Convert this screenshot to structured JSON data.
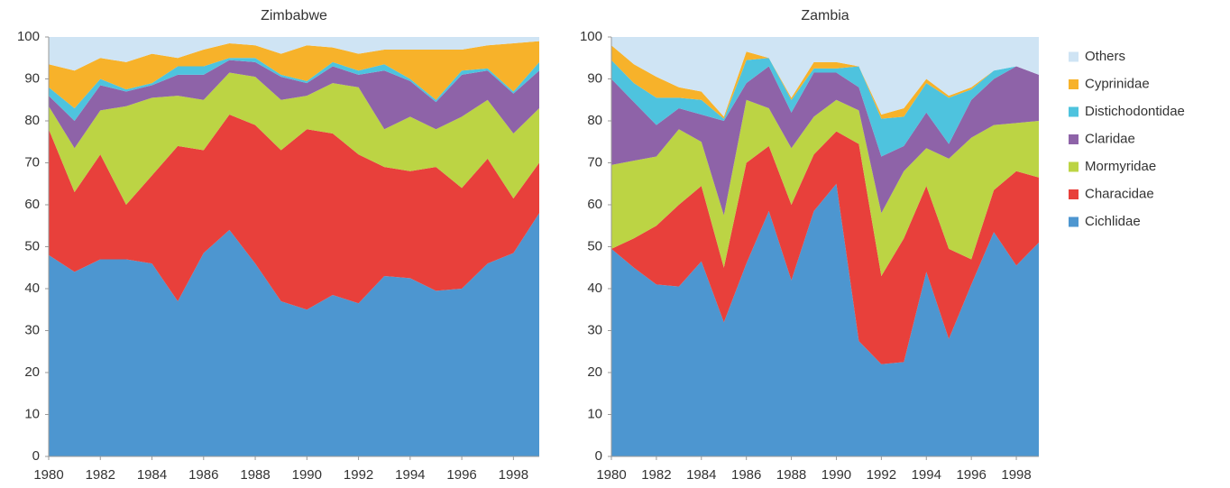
{
  "chart_data": [
    {
      "type": "area",
      "stacked": true,
      "title": "Zimbabwe",
      "x": [
        1980,
        1981,
        1982,
        1983,
        1984,
        1985,
        1986,
        1987,
        1988,
        1989,
        1990,
        1991,
        1992,
        1993,
        1994,
        1995,
        1996,
        1997,
        1998,
        1999
      ],
      "xlim": [
        1980,
        1999
      ],
      "xticks": [
        1980,
        1982,
        1984,
        1986,
        1988,
        1990,
        1992,
        1994,
        1996,
        1998
      ],
      "ylim": [
        0,
        100
      ],
      "yticks": [
        0,
        10,
        20,
        30,
        40,
        50,
        60,
        70,
        80,
        90,
        100
      ],
      "series": [
        {
          "name": "Cichlidae",
          "color": "#4d96d0",
          "values": [
            48,
            44,
            47,
            47,
            46,
            37,
            48.5,
            54,
            46,
            37,
            35,
            38.5,
            36.5,
            43,
            42.5,
            39.5,
            40,
            46,
            48.5,
            58
          ]
        },
        {
          "name": "Characidae",
          "color": "#e8403b",
          "values": [
            30,
            19,
            25,
            13,
            21,
            37,
            24.5,
            27.5,
            33,
            36,
            43,
            38.5,
            35.5,
            26,
            25.5,
            29.5,
            24,
            25,
            13,
            12
          ]
        },
        {
          "name": "Mormyridae",
          "color": "#bcd444",
          "values": [
            5.5,
            10.5,
            10.5,
            23.5,
            18.5,
            12,
            12,
            10,
            11.5,
            12,
            8,
            12,
            16,
            9,
            13,
            9,
            17,
            14,
            15.5,
            13
          ]
        },
        {
          "name": "Claridae",
          "color": "#8e63a8",
          "values": [
            2.5,
            6.5,
            6,
            3.5,
            3,
            5,
            6,
            3,
            3.5,
            5.5,
            3,
            4,
            3,
            14,
            8.5,
            6.5,
            10,
            7,
            9.5,
            9
          ]
        },
        {
          "name": "Distichodontidae",
          "color": "#4ec3de",
          "values": [
            2,
            3,
            1.5,
            0.5,
            0.5,
            2,
            2,
            0.5,
            1,
            0.5,
            0.5,
            1,
            1,
            1.5,
            0.5,
            0.5,
            1,
            0.5,
            0.5,
            2
          ]
        },
        {
          "name": "Cyprinidae",
          "color": "#f7b22a",
          "values": [
            5.5,
            9,
            5,
            6.5,
            7,
            2,
            4,
            3.5,
            3,
            5,
            8.5,
            3.5,
            4,
            3.5,
            7,
            12,
            5,
            5.5,
            11.5,
            5
          ]
        },
        {
          "name": "Others",
          "color": "#cfe4f4",
          "values": [
            6.5,
            8,
            5,
            6,
            4,
            5,
            3,
            1.5,
            2,
            4,
            2,
            2.5,
            4,
            3,
            3,
            3,
            3,
            2,
            1.5,
            1
          ]
        }
      ]
    },
    {
      "type": "area",
      "stacked": true,
      "title": "Zambia",
      "legend": "right",
      "x": [
        1980,
        1981,
        1982,
        1983,
        1984,
        1985,
        1986,
        1987,
        1988,
        1989,
        1990,
        1991,
        1992,
        1993,
        1994,
        1995,
        1996,
        1997,
        1998,
        1999
      ],
      "xlim": [
        1980,
        1999
      ],
      "xticks": [
        1980,
        1982,
        1984,
        1986,
        1988,
        1990,
        1992,
        1994,
        1996,
        1998
      ],
      "ylim": [
        0,
        100
      ],
      "yticks": [
        0,
        10,
        20,
        30,
        40,
        50,
        60,
        70,
        80,
        90,
        100
      ],
      "series": [
        {
          "name": "Cichlidae",
          "color": "#4d96d0",
          "values": [
            49.5,
            45,
            41,
            40.5,
            46.5,
            32,
            46,
            58.5,
            42,
            58.5,
            65,
            27.5,
            22,
            22.5,
            44,
            28,
            41,
            53.5,
            45.5,
            51
          ]
        },
        {
          "name": "Characidae",
          "color": "#e8403b",
          "values": [
            0,
            7,
            14,
            19.5,
            18,
            13,
            24,
            15.5,
            18,
            13.5,
            12.5,
            47,
            21,
            29.5,
            20.5,
            21.5,
            6,
            10,
            22.5,
            15.5
          ]
        },
        {
          "name": "Mormyridae",
          "color": "#bcd444",
          "values": [
            20,
            18.5,
            16.5,
            18,
            10.5,
            12.5,
            15,
            9,
            13.5,
            9,
            7.5,
            8,
            15,
            16,
            9,
            21.5,
            29,
            15.5,
            11.5,
            13.5
          ]
        },
        {
          "name": "Claridae",
          "color": "#8e63a8",
          "values": [
            20.5,
            14,
            7.5,
            5,
            6.5,
            22.5,
            4,
            10,
            8.5,
            10.5,
            6.5,
            5.5,
            13.5,
            6,
            8.5,
            3.5,
            9,
            11,
            13.5,
            11
          ]
        },
        {
          "name": "Distichodontidae",
          "color": "#4ec3de",
          "values": [
            4.5,
            4.5,
            6.5,
            2.5,
            3.5,
            0.5,
            5.5,
            2,
            3,
            1,
            1,
            5,
            9,
            7,
            7,
            11,
            2.5,
            2,
            0,
            0
          ]
        },
        {
          "name": "Cyprinidae",
          "color": "#f7b22a",
          "values": [
            3.5,
            4.5,
            5,
            2.5,
            2,
            0.5,
            2,
            0,
            0.5,
            1.5,
            1.5,
            0,
            1,
            2,
            1,
            0.5,
            0.5,
            0,
            0,
            0
          ]
        },
        {
          "name": "Others",
          "color": "#cfe4f4",
          "values": [
            2,
            6.5,
            9.5,
            12,
            13,
            19,
            3.5,
            5,
            14.5,
            6,
            6,
            7,
            18.5,
            17,
            10,
            14,
            12,
            8,
            7,
            9
          ]
        }
      ]
    }
  ]
}
